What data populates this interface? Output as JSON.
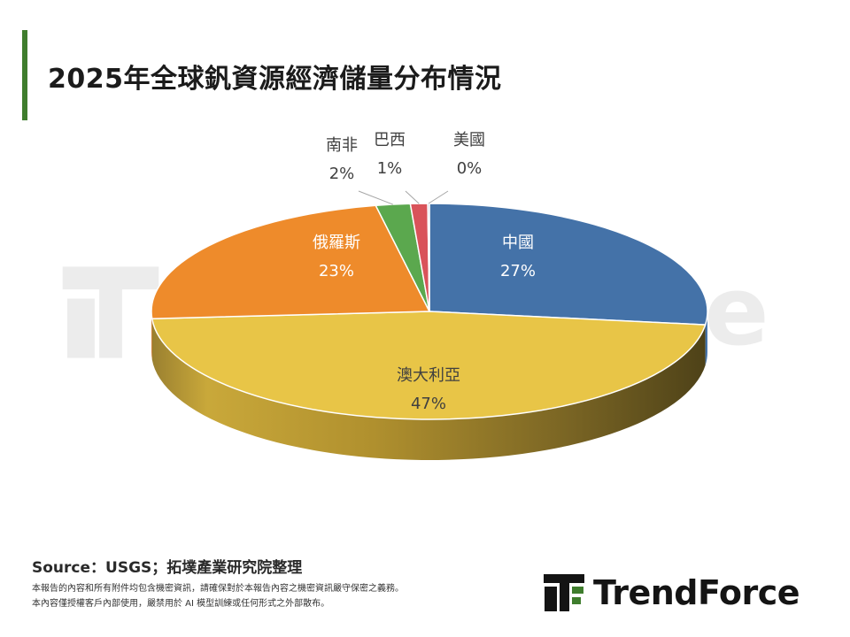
{
  "title": "2025年全球釩資源經濟儲量分布情況",
  "source": "Source：USGS；拓墣產業研究院整理",
  "notices": [
    "本報告的內容和所有附件均包含機密資訊，請確保對於本報告內容之機密資訊嚴守保密之義務。",
    "本內容僅授權客戶內部使用，嚴禁用於 AI 模型訓練或任何形式之外部散布。"
  ],
  "brand": {
    "name": "TrendForce",
    "accent": "#3f7d2d"
  },
  "chart_data": {
    "type": "pie",
    "title": "2025年全球釩資源經濟儲量分布情況",
    "slices": [
      {
        "name": "中國",
        "value": 27,
        "label": "27%",
        "color": "#4472a8"
      },
      {
        "name": "澳大利亞",
        "value": 47,
        "label": "47%",
        "color": "#e8c547"
      },
      {
        "name": "俄羅斯",
        "value": 23,
        "label": "23%",
        "color": "#ee8b2b"
      },
      {
        "name": "南非",
        "value": 2,
        "label": "2%",
        "color": "#5ba84e"
      },
      {
        "name": "巴西",
        "value": 1,
        "label": "1%",
        "color": "#d9535a"
      },
      {
        "name": "美國",
        "value": 0,
        "label": "0%",
        "color": "#8aa0c8"
      }
    ],
    "style": "3d"
  }
}
